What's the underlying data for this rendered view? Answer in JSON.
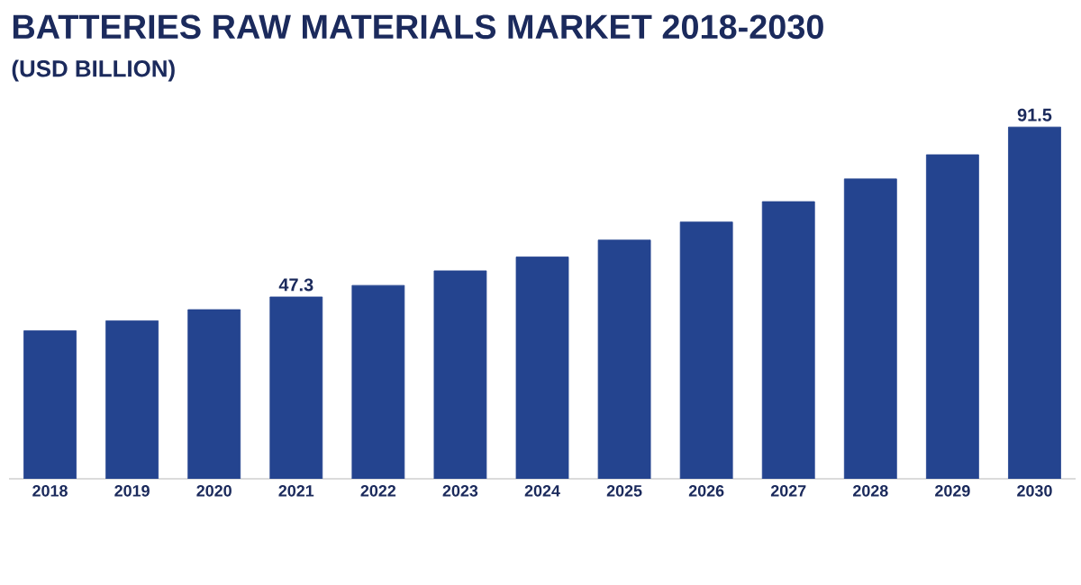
{
  "chart_data": {
    "type": "bar",
    "title": "BATTERIES RAW MATERIALS MARKET **2018-2030**",
    "subtitle": "(USD BILLION)",
    "categories": [
      "2018",
      "2019",
      "2020",
      "2021",
      "2022",
      "2023",
      "2024",
      "2025",
      "2026",
      "2027",
      "2028",
      "2029",
      "2030"
    ],
    "values": [
      38.5,
      41.1,
      44.0,
      47.3,
      50.3,
      54.1,
      57.7,
      62.1,
      66.8,
      72.1,
      78.0,
      84.3,
      91.5
    ],
    "value_labels": [
      null,
      null,
      null,
      "47.3",
      null,
      null,
      null,
      null,
      null,
      null,
      null,
      null,
      "91.5"
    ],
    "color": "#24448f",
    "tick_labels": "x"
  }
}
